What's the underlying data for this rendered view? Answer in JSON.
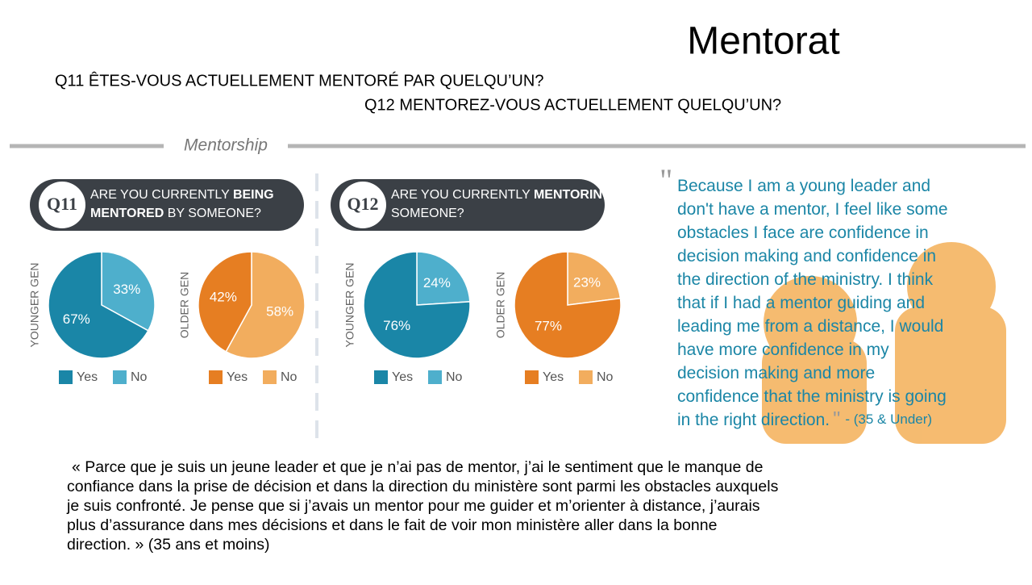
{
  "title": "Mentorat",
  "questions": [
    "Q11 ÊTES-VOUS ACTUELLEMENT MENTORÉ PAR QUELQU’UN?",
    "Q12 MENTOREZ-VOUS ACTUELLEMENT QUELQU’UN?"
  ],
  "section": "Mentorship",
  "panels": [
    {
      "badge": "Q11",
      "prefix": "ARE YOU CURRENTLY",
      "bold": [
        "BEING",
        "MENTORED"
      ],
      "suffix": "BY SOMEONE?"
    },
    {
      "badge": "Q12",
      "prefix": "ARE YOU CURRENTLY",
      "bold": [
        "MENTORING"
      ],
      "suffix": "SOMEONE?"
    }
  ],
  "chart_data": [
    {
      "type": "pie",
      "ylabel": "YOUNGER GEN",
      "categories": [
        "Yes",
        "No"
      ],
      "values": [
        67,
        33
      ],
      "value_labels": [
        "67%",
        "33%"
      ],
      "colors": [
        "#1a86a7",
        "#4eafcc"
      ]
    },
    {
      "type": "pie",
      "ylabel": "OLDER GEN",
      "categories": [
        "Yes",
        "No"
      ],
      "values": [
        42,
        58
      ],
      "value_labels": [
        "42%",
        "58%"
      ],
      "colors": [
        "#e67e22",
        "#f2ad5e"
      ]
    },
    {
      "type": "pie",
      "ylabel": "YOUNGER GEN",
      "categories": [
        "Yes",
        "No"
      ],
      "values": [
        76,
        24
      ],
      "value_labels": [
        "76%",
        "24%"
      ],
      "colors": [
        "#1a86a7",
        "#4eafcc"
      ]
    },
    {
      "type": "pie",
      "ylabel": "OLDER GEN",
      "categories": [
        "Yes",
        "No"
      ],
      "values": [
        77,
        23
      ],
      "value_labels": [
        "77%",
        "23%"
      ],
      "colors": [
        "#e67e22",
        "#f2ad5e"
      ]
    }
  ],
  "quote": {
    "lines": [
      "Because I am a young leader and",
      "don't have a mentor, I feel like some",
      "obstacles I face are confidence in",
      "decision making and confidence in",
      "the direction of the ministry. I think",
      "that if I had a mentor guiding and",
      "leading me from a distance, I would",
      "have more confidence in my",
      "decision making and more",
      "confidence that the ministry is going",
      "in the right direction."
    ],
    "attribution": "- (35 & Under)"
  },
  "translation": [
    "« Parce que je suis un jeune leader et que je n’ai pas de mentor, j’ai le sentiment que le manque de",
    "confiance dans la prise de décision et dans la direction du ministère sont parmi les obstacles auxquels",
    "je suis confronté. Je pense que si j’avais un mentor pour me guider et m’orienter à distance, j’aurais",
    "plus d’assurance dans mes décisions et dans le fait de voir mon ministère aller dans la bonne",
    "direction. » (35 ans et moins)"
  ]
}
